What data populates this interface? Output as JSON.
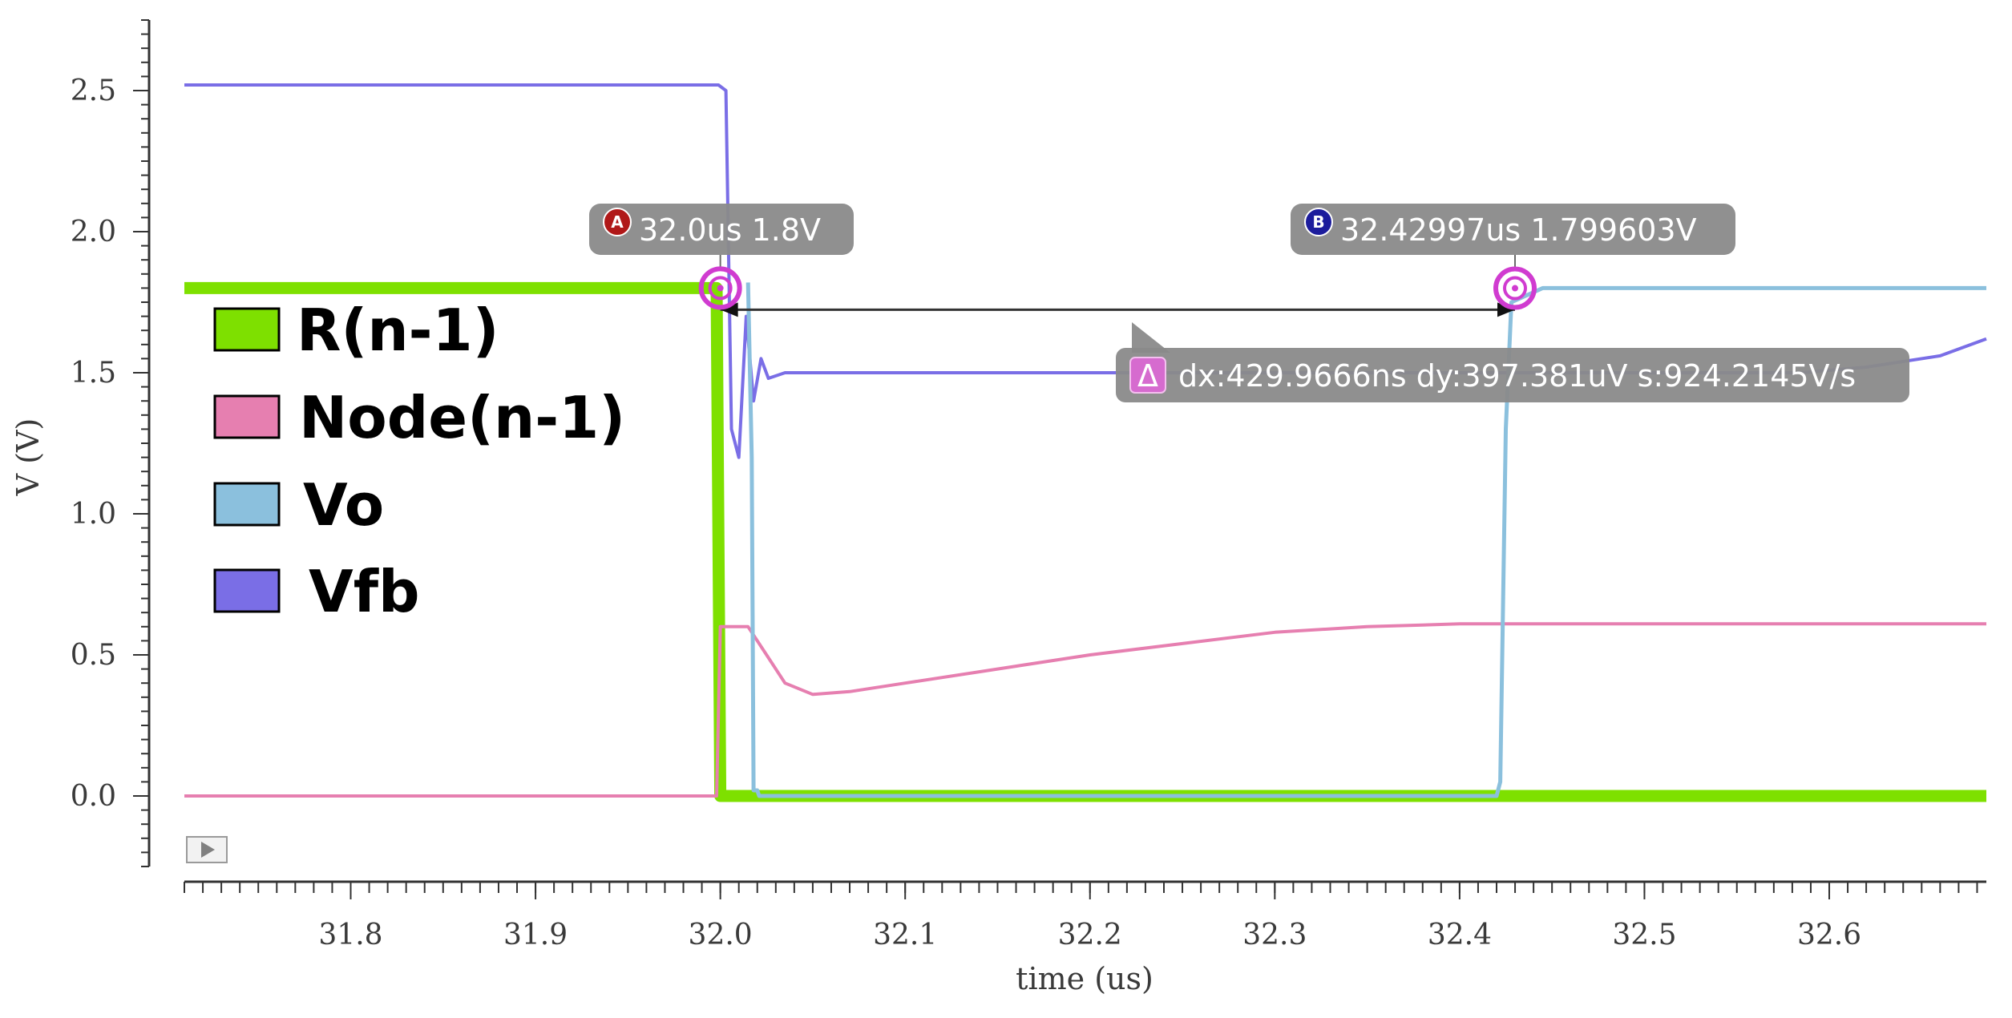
{
  "chart_data": {
    "type": "line",
    "xlabel": "time (us)",
    "ylabel": "V (V)",
    "xlim": [
      31.71,
      32.685
    ],
    "ylim": [
      -0.25,
      2.75
    ],
    "x_ticks": [
      "31.8",
      "31.9",
      "32.0",
      "32.1",
      "32.2",
      "32.3",
      "32.4",
      "32.5",
      "32.6"
    ],
    "y_ticks": [
      "0.0",
      "0.5",
      "1.0",
      "1.5",
      "2.0",
      "2.5"
    ],
    "legend_position": "left",
    "series": [
      {
        "name": "R(n-1)",
        "color": "#7ee000",
        "points": [
          [
            31.71,
            1.8
          ],
          [
            31.998,
            1.8
          ],
          [
            32.0,
            0.0
          ],
          [
            32.685,
            0.0
          ]
        ]
      },
      {
        "name": "Node(n-1)",
        "color": "#e67fb0",
        "points": [
          [
            31.71,
            0.0
          ],
          [
            31.998,
            0.0
          ],
          [
            32.0,
            0.6
          ],
          [
            32.015,
            0.6
          ],
          [
            32.025,
            0.5
          ],
          [
            32.035,
            0.4
          ],
          [
            32.05,
            0.36
          ],
          [
            32.07,
            0.37
          ],
          [
            32.1,
            0.4
          ],
          [
            32.15,
            0.45
          ],
          [
            32.2,
            0.5
          ],
          [
            32.25,
            0.54
          ],
          [
            32.3,
            0.58
          ],
          [
            32.35,
            0.6
          ],
          [
            32.4,
            0.61
          ],
          [
            32.685,
            0.61
          ]
        ]
      },
      {
        "name": "Vo",
        "color": "#8bc0dd",
        "points": [
          [
            32.015,
            1.82
          ],
          [
            32.017,
            1.2
          ],
          [
            32.018,
            0.02
          ],
          [
            32.02,
            0.02
          ],
          [
            32.021,
            0.0
          ],
          [
            32.42,
            0.0
          ],
          [
            32.422,
            0.05
          ],
          [
            32.425,
            1.3
          ],
          [
            32.428,
            1.75
          ],
          [
            32.445,
            1.8
          ],
          [
            32.685,
            1.8
          ]
        ]
      },
      {
        "name": "Vfb",
        "color": "#7a6ee6",
        "points": [
          [
            31.71,
            2.52
          ],
          [
            31.999,
            2.52
          ],
          [
            32.003,
            2.5
          ],
          [
            32.006,
            1.3
          ],
          [
            32.01,
            1.2
          ],
          [
            32.014,
            1.7
          ],
          [
            32.018,
            1.4
          ],
          [
            32.022,
            1.55
          ],
          [
            32.026,
            1.48
          ],
          [
            32.035,
            1.5
          ],
          [
            32.585,
            1.5
          ],
          [
            32.62,
            1.52
          ],
          [
            32.66,
            1.56
          ],
          [
            32.685,
            1.62
          ]
        ]
      }
    ],
    "markers": [
      {
        "id": "A",
        "x": 32.0,
        "y": 1.8,
        "label": "32.0us 1.8V",
        "badge_color": "#b01818"
      },
      {
        "id": "B",
        "x": 32.42997,
        "y": 1.799603,
        "label": "32.42997us 1.799603V",
        "badge_color": "#1c1c9c"
      }
    ],
    "delta": {
      "symbol": "Δ",
      "label": "dx:429.9666ns dy:397.381uV s:924.2145V/s"
    }
  }
}
